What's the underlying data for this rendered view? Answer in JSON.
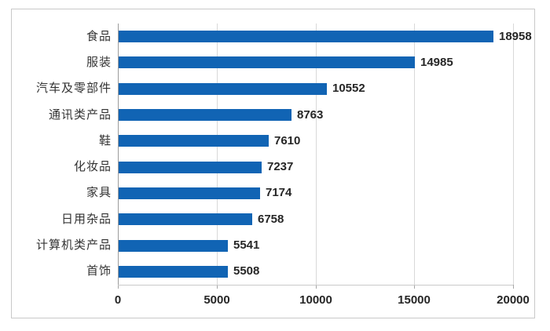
{
  "chart_data": {
    "type": "bar",
    "orientation": "horizontal",
    "title": "",
    "xlabel": "",
    "ylabel": "",
    "categories": [
      "食品",
      "服装",
      "汽车及零部件",
      "通讯类产品",
      "鞋",
      "化妆品",
      "家具",
      "日用杂品",
      "计算机类产品",
      "首饰"
    ],
    "values": [
      18958,
      14985,
      10552,
      8763,
      7610,
      7237,
      7174,
      6758,
      5541,
      5508
    ],
    "value_labels": [
      "18958",
      "14985",
      "10552",
      "8763",
      "7610",
      "7237",
      "7174",
      "6758",
      "5541",
      "5508"
    ],
    "x_ticks": [
      0,
      5000,
      10000,
      15000,
      20000
    ],
    "x_tick_labels": [
      "0",
      "5000",
      "10000",
      "15000",
      "20000"
    ],
    "xlim": [
      0,
      20000
    ],
    "grid": true,
    "legend": false,
    "colors": {
      "bar": "#1164b4",
      "gridline": "#d9d9d9",
      "axis_line": "#9c9c9c",
      "tick": "#a6a6a6",
      "text": "#262626",
      "category_text": "#333333",
      "frame_border": "#c9c9c9"
    }
  }
}
